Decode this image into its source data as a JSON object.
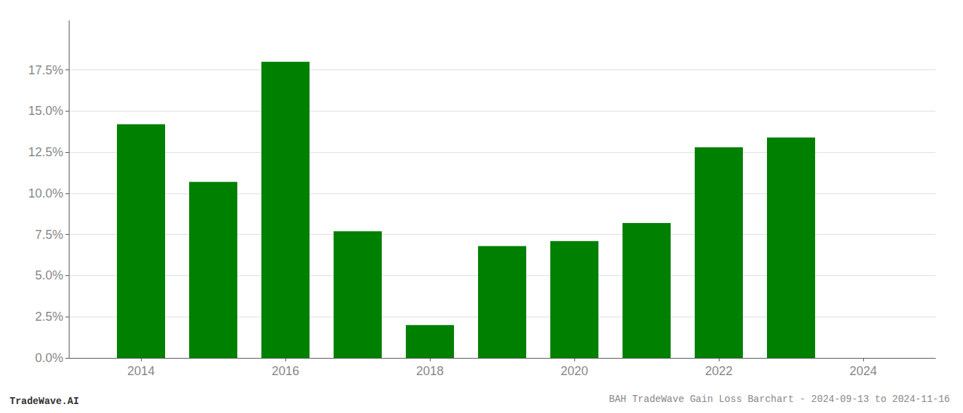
{
  "chart_data": {
    "type": "bar",
    "title": "BAH TradeWave Gain Loss Barchart - 2024-09-13 to 2024-11-16",
    "annotations": [
      "TradeWave.AI"
    ],
    "x": [
      2014,
      2015,
      2016,
      2017,
      2018,
      2019,
      2020,
      2021,
      2022,
      2023,
      2024
    ],
    "values": [
      0.142,
      0.107,
      0.18,
      0.077,
      0.02,
      0.068,
      0.071,
      0.082,
      0.128,
      0.134,
      null
    ],
    "color": "#008000",
    "xlim": [
      2013.0,
      2025.0
    ],
    "xticks": [
      2014,
      2016,
      2018,
      2020,
      2022,
      2024
    ],
    "ylim": [
      0.0,
      0.205
    ],
    "yticks": [
      {
        "value": 0.0,
        "label": "0.0%"
      },
      {
        "value": 0.025,
        "label": "2.5%"
      },
      {
        "value": 0.05,
        "label": "5.0%"
      },
      {
        "value": 0.075,
        "label": "7.5%"
      },
      {
        "value": 0.1,
        "label": "10.0%"
      },
      {
        "value": 0.125,
        "label": "12.5%"
      },
      {
        "value": 0.15,
        "label": "15.0%"
      },
      {
        "value": 0.175,
        "label": "17.5%"
      }
    ],
    "grid": true
  }
}
